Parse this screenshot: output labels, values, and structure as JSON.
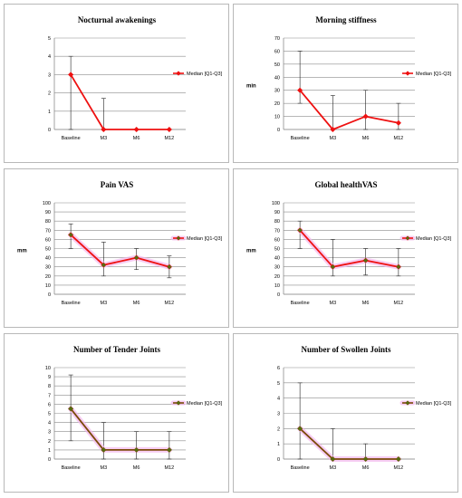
{
  "chart_data": [
    {
      "type": "line",
      "title": "Nocturnal awakenings",
      "ylabel": "",
      "categories": [
        "Baseline",
        "M3",
        "M6",
        "M12"
      ],
      "ylim": [
        0,
        5
      ],
      "yticks": [
        0,
        1,
        2,
        3,
        4,
        5
      ],
      "legend": "right",
      "grid": true,
      "series": [
        {
          "name": "Median [Q1-Q3]",
          "values": [
            3,
            0,
            0,
            0
          ],
          "q1": [
            0,
            0,
            0,
            0
          ],
          "q3": [
            4,
            1.7,
            0,
            0
          ],
          "color": "#ee1111",
          "marker_color": "#ee1111",
          "glow": false
        }
      ]
    },
    {
      "type": "line",
      "title": "Morning stiffness",
      "ylabel": "min",
      "categories": [
        "Baseline",
        "M3",
        "M6",
        "M12"
      ],
      "ylim": [
        0,
        70
      ],
      "yticks": [
        0,
        10,
        20,
        30,
        40,
        50,
        60,
        70
      ],
      "legend": "right",
      "grid": true,
      "series": [
        {
          "name": "Median [Q1-Q3]",
          "values": [
            30,
            0,
            10,
            5
          ],
          "q1": [
            20,
            0,
            0,
            0
          ],
          "q3": [
            60,
            26,
            30,
            20
          ],
          "color": "#ee1111",
          "marker_color": "#ee1111",
          "glow": false
        }
      ]
    },
    {
      "type": "line",
      "title": "Pain VAS",
      "ylabel": "mm",
      "categories": [
        "Baseline",
        "M3",
        "M6",
        "M12"
      ],
      "ylim": [
        0,
        100
      ],
      "yticks": [
        0,
        10,
        20,
        30,
        40,
        50,
        60,
        70,
        80,
        90,
        100
      ],
      "legend": "right",
      "grid": true,
      "series": [
        {
          "name": "Median [Q1-Q3]",
          "values": [
            65,
            32,
            40,
            30
          ],
          "q1": [
            50,
            20,
            27,
            18
          ],
          "q3": [
            77,
            57,
            50,
            42
          ],
          "color": "#ee1111",
          "marker_color": "#556b10",
          "glow": true
        }
      ]
    },
    {
      "type": "line",
      "title": "Global healthVAS",
      "ylabel": "mm",
      "categories": [
        "Baseline",
        "M3",
        "M6",
        "M12"
      ],
      "ylim": [
        0,
        100
      ],
      "yticks": [
        0,
        10,
        20,
        30,
        40,
        50,
        60,
        70,
        80,
        90,
        100
      ],
      "legend": "right",
      "grid": true,
      "series": [
        {
          "name": "Median [Q1-Q3]",
          "values": [
            70,
            30,
            37,
            30
          ],
          "q1": [
            50,
            20,
            21,
            20
          ],
          "q3": [
            80,
            60,
            50,
            50
          ],
          "color": "#ee1111",
          "marker_color": "#556b10",
          "glow": true
        }
      ]
    },
    {
      "type": "line",
      "title": "Number of Tender Joints",
      "ylabel": "",
      "categories": [
        "Baseline",
        "M3",
        "M6",
        "M12"
      ],
      "ylim": [
        0,
        10
      ],
      "yticks": [
        0,
        1,
        2,
        3,
        4,
        5,
        6,
        7,
        8,
        9,
        10
      ],
      "legend": "right",
      "grid": true,
      "series": [
        {
          "name": "Median [Q1-Q3]",
          "values": [
            5.5,
            1,
            1,
            1
          ],
          "q1": [
            2,
            0,
            0,
            0
          ],
          "q3": [
            9.2,
            4,
            3,
            3
          ],
          "color": "#7a4a08",
          "marker_color": "#556b10",
          "glow": true
        }
      ]
    },
    {
      "type": "line",
      "title": "Number of Swollen Joints",
      "ylabel": "",
      "categories": [
        "Baseline",
        "M3",
        "M6",
        "M12"
      ],
      "ylim": [
        0,
        6
      ],
      "yticks": [
        0,
        1,
        2,
        3,
        4,
        5,
        6
      ],
      "legend": "right",
      "grid": true,
      "series": [
        {
          "name": "Median [Q1-Q3]",
          "values": [
            2,
            0,
            0,
            0
          ],
          "q1": [
            0,
            0,
            0,
            0
          ],
          "q3": [
            5,
            2,
            1,
            0
          ],
          "color": "#7a4a08",
          "marker_color": "#556b10",
          "glow": true
        }
      ]
    }
  ]
}
